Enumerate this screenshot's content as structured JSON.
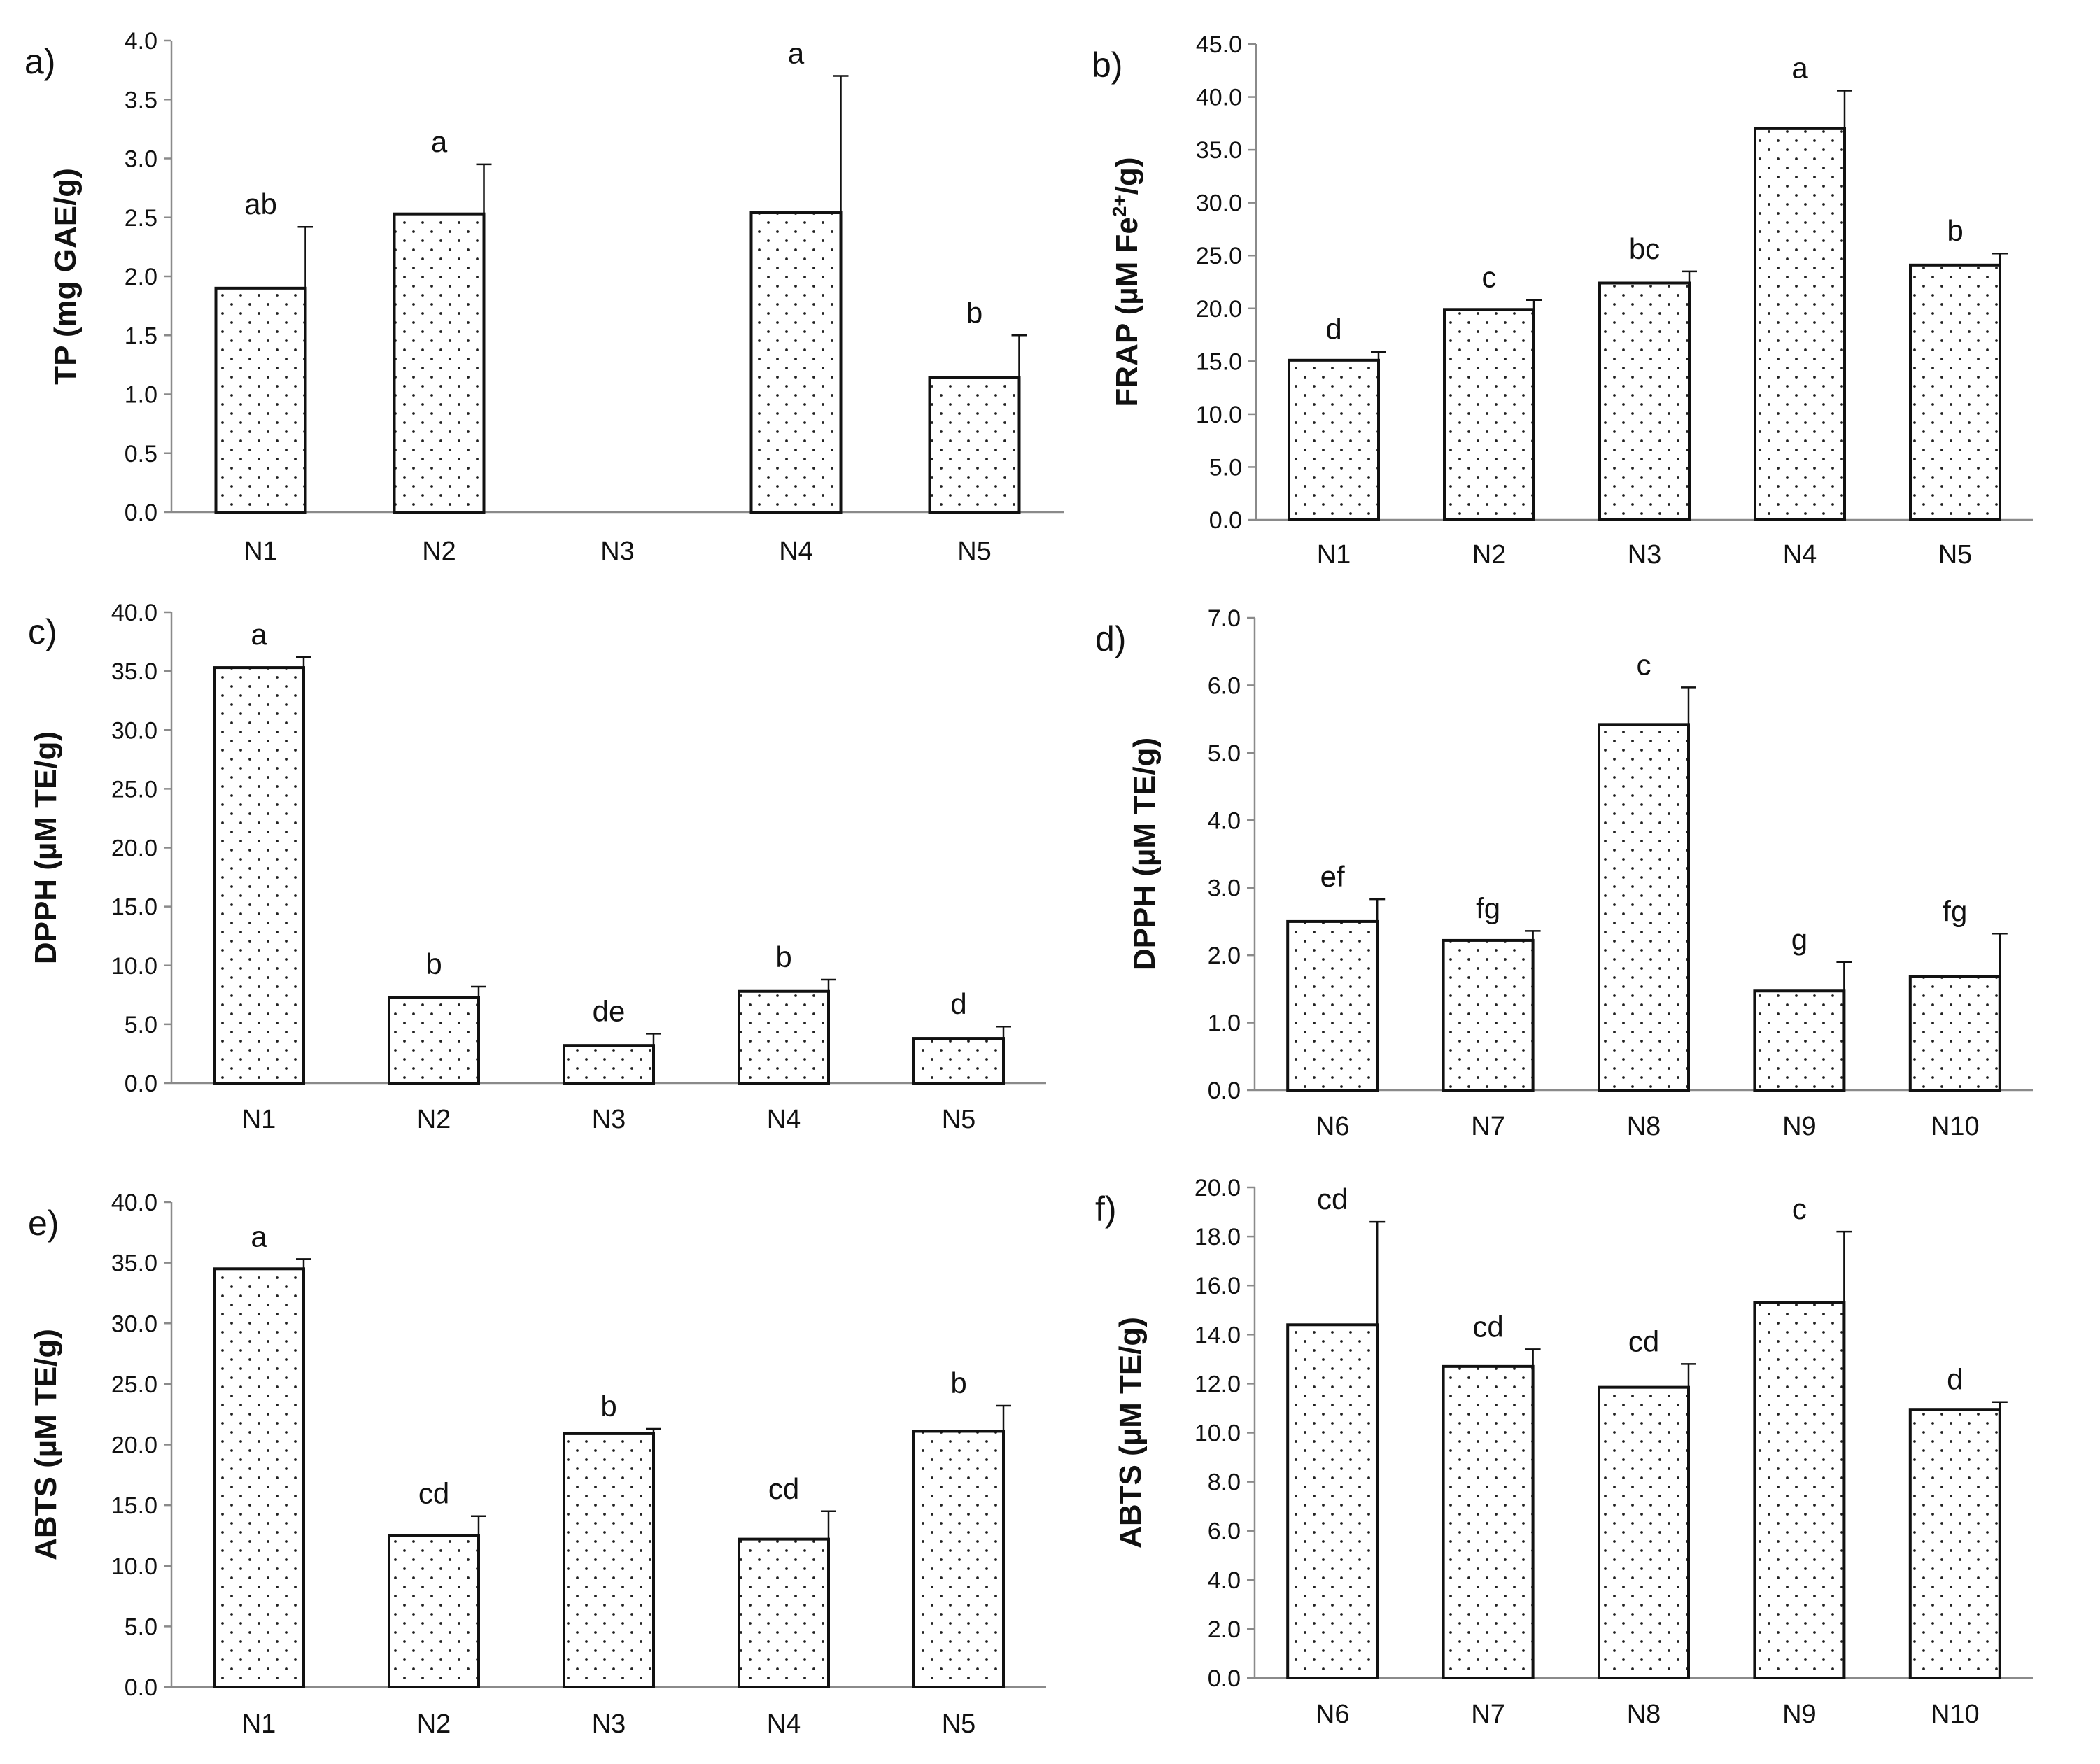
{
  "chart_data": [
    {
      "type": "bar",
      "panel_label": "a)",
      "ylabel": "TP (mg GAE/g)",
      "ylabel_sup": "",
      "ylabel_tail": "",
      "categories": [
        "N1",
        "N2",
        "N3",
        "N4",
        "N5"
      ],
      "values": [
        1.9,
        2.53,
        null,
        2.54,
        1.14
      ],
      "errors": [
        0.52,
        0.42,
        null,
        1.16,
        0.36
      ],
      "letters": [
        "ab",
        "a",
        "",
        "a",
        "b"
      ],
      "ylim": [
        0,
        4.0
      ],
      "ticks": [
        "0.0",
        "0.5",
        "1.0",
        "1.5",
        "2.0",
        "2.5",
        "3.0",
        "3.5",
        "4.0"
      ]
    },
    {
      "type": "bar",
      "panel_label": "b)",
      "ylabel": "FRAP (µM Fe",
      "ylabel_sup": "2+",
      "ylabel_tail": "/g)",
      "categories": [
        "N1",
        "N2",
        "N3",
        "N4",
        "N5"
      ],
      "values": [
        15.1,
        19.9,
        22.4,
        37.0,
        24.1
      ],
      "errors": [
        0.8,
        0.9,
        1.1,
        3.6,
        1.1
      ],
      "letters": [
        "d",
        "c",
        "bc",
        "a",
        "b"
      ],
      "ylim": [
        0,
        45.0
      ],
      "ticks": [
        "0.0",
        "5.0",
        "10.0",
        "15.0",
        "20.0",
        "25.0",
        "30.0",
        "35.0",
        "40.0",
        "45.0"
      ]
    },
    {
      "type": "bar",
      "panel_label": "c)",
      "ylabel": "DPPH (µM TE/g)",
      "ylabel_sup": "",
      "ylabel_tail": "",
      "categories": [
        "N1",
        "N2",
        "N3",
        "N4",
        "N5"
      ],
      "values": [
        35.3,
        7.3,
        3.2,
        7.8,
        3.8
      ],
      "errors": [
        0.9,
        0.9,
        1.0,
        1.0,
        1.0
      ],
      "letters": [
        "a",
        "b",
        "de",
        "b",
        "d"
      ],
      "ylim": [
        0,
        40.0
      ],
      "ticks": [
        "0.0",
        "5.0",
        "10.0",
        "15.0",
        "20.0",
        "25.0",
        "30.0",
        "35.0",
        "40.0"
      ]
    },
    {
      "type": "bar",
      "panel_label": "d)",
      "ylabel": "DPPH (µM TE/g)",
      "ylabel_sup": "",
      "ylabel_tail": "",
      "categories": [
        "N6",
        "N7",
        "N8",
        "N9",
        "N10"
      ],
      "values": [
        2.5,
        2.22,
        5.42,
        1.47,
        1.69
      ],
      "errors": [
        0.33,
        0.14,
        0.55,
        0.43,
        0.63
      ],
      "letters": [
        "ef",
        "fg",
        "c",
        "g",
        "fg"
      ],
      "ylim": [
        0,
        7.0
      ],
      "ticks": [
        "0.0",
        "1.0",
        "2.0",
        "3.0",
        "4.0",
        "5.0",
        "6.0",
        "7.0"
      ]
    },
    {
      "type": "bar",
      "panel_label": "e)",
      "ylabel": "ABTS (µM TE/g)",
      "ylabel_sup": "",
      "ylabel_tail": "",
      "categories": [
        "N1",
        "N2",
        "N3",
        "N4",
        "N5"
      ],
      "values": [
        34.5,
        12.5,
        20.9,
        12.2,
        21.1
      ],
      "errors": [
        0.8,
        1.6,
        0.4,
        2.3,
        2.1
      ],
      "letters": [
        "a",
        "cd",
        "b",
        "cd",
        "b"
      ],
      "ylim": [
        0,
        40.0
      ],
      "ticks": [
        "0.0",
        "5.0",
        "10.0",
        "15.0",
        "20.0",
        "25.0",
        "30.0",
        "35.0",
        "40.0"
      ]
    },
    {
      "type": "bar",
      "panel_label": "f)",
      "ylabel": "ABTS (µM TE/g)",
      "ylabel_sup": "",
      "ylabel_tail": "",
      "categories": [
        "N6",
        "N7",
        "N8",
        "N9",
        "N10"
      ],
      "values": [
        14.4,
        12.7,
        11.85,
        15.3,
        10.95
      ],
      "errors": [
        4.2,
        0.7,
        0.95,
        2.9,
        0.3
      ],
      "letters": [
        "cd",
        "cd",
        "cd",
        "c",
        "d"
      ],
      "ylim": [
        0,
        20.0
      ],
      "ticks": [
        "0.0",
        "2.0",
        "4.0",
        "6.0",
        "8.0",
        "10.0",
        "12.0",
        "14.0",
        "16.0",
        "18.0",
        "20.0"
      ]
    }
  ]
}
